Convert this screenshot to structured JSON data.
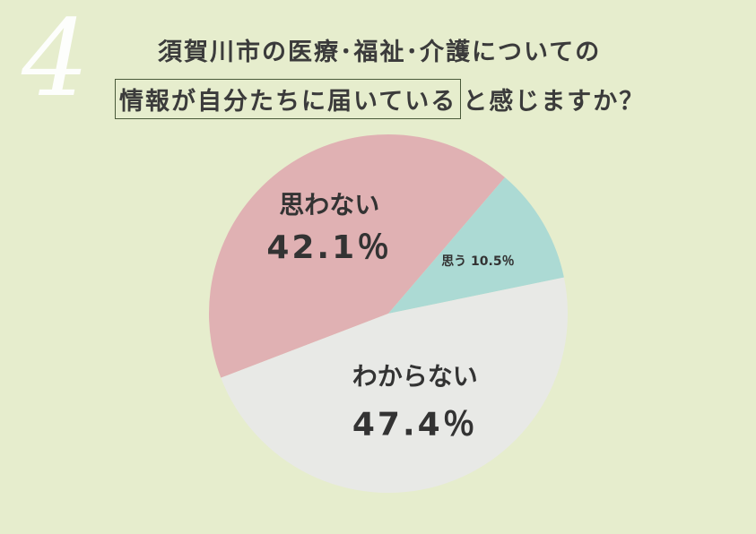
{
  "question": {
    "number": "4",
    "line1": "須賀川市の医療･福祉･介護についての",
    "line2_boxed": "情報が自分たちに届いている",
    "line2_rest": "と感じますか？"
  },
  "colors": {
    "background": "#e6edcd",
    "omowanai": "#e0b1b3",
    "omou": "#acdad4",
    "wakaranai": "#e8e9e6"
  },
  "chart_data": {
    "type": "pie",
    "title": "",
    "slices": [
      {
        "label": "思わない",
        "value": 42.1,
        "display": "42.1％",
        "color": "#e0b1b3"
      },
      {
        "label": "思う",
        "value": 10.5,
        "display": "10.5％",
        "color": "#acdad4"
      },
      {
        "label": "わからない",
        "value": 47.4,
        "display": "47.4％",
        "color": "#e8e9e6"
      }
    ]
  }
}
